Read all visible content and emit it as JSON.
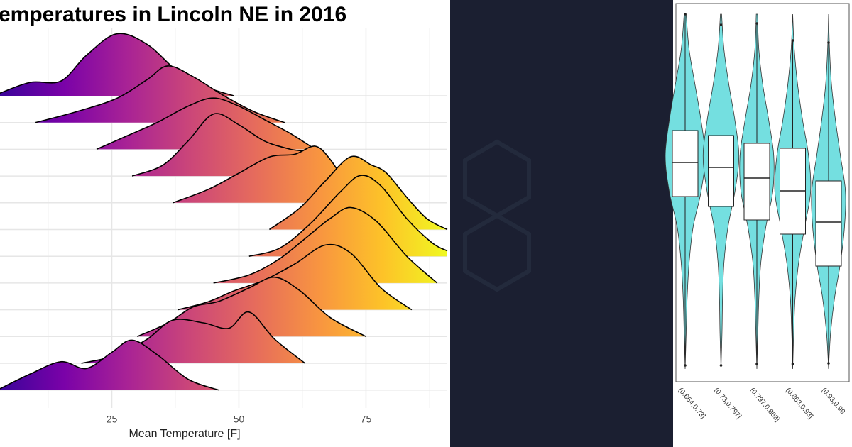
{
  "chart_data": [
    {
      "type": "ridgeline",
      "title": "emperatures in Lincoln NE in 2016",
      "x_label": "Mean Temperature [F]",
      "xlim": [
        3,
        91
      ],
      "xticks": [
        25,
        50,
        75
      ],
      "minor_xticks": [
        12.5,
        37.5,
        62.5,
        87.5
      ],
      "grid": true,
      "fill_colors": [
        "#3b049a",
        "#7a02a8",
        "#a92395",
        "#cc4778",
        "#e66c5c",
        "#f89540",
        "#fdc328",
        "#f0f921"
      ],
      "line_color": "#000000",
      "series": [
        {
          "x": [
            3,
            9,
            15,
            20,
            26,
            32,
            38,
            44,
            49
          ],
          "values": [
            0.1,
            0.5,
            0.55,
            1.5,
            2.3,
            1.9,
            0.9,
            0.3,
            0
          ]
        },
        {
          "x": [
            10,
            18,
            26,
            32,
            36,
            41,
            47,
            53,
            59
          ],
          "values": [
            0,
            0.4,
            0.9,
            1.6,
            2.1,
            1.7,
            1.0,
            0.4,
            0
          ]
        },
        {
          "x": [
            22,
            28,
            34,
            40,
            45,
            50,
            55,
            60,
            65
          ],
          "values": [
            0,
            0.5,
            1.0,
            1.6,
            1.9,
            1.6,
            1.1,
            0.6,
            0
          ]
        },
        {
          "x": [
            29,
            35,
            40,
            45,
            50,
            55,
            60,
            65,
            69
          ],
          "values": [
            0,
            0.4,
            1.3,
            2.3,
            1.9,
            1.3,
            1.0,
            0.8,
            0
          ]
        },
        {
          "x": [
            37,
            44,
            50,
            56,
            61,
            65,
            68,
            71,
            73
          ],
          "values": [
            0,
            0.5,
            1.1,
            1.7,
            1.8,
            2.1,
            1.6,
            0.7,
            0
          ]
        },
        {
          "x": [
            56,
            62,
            67,
            72,
            76,
            79,
            83,
            87,
            91
          ],
          "values": [
            0,
            0.8,
            1.8,
            2.7,
            2.4,
            2.1,
            1.2,
            0.4,
            0
          ]
        },
        {
          "x": [
            52,
            58,
            64,
            70,
            74,
            78,
            83,
            88,
            91
          ],
          "values": [
            0,
            0.3,
            1.2,
            2.4,
            3.0,
            2.6,
            1.4,
            0.5,
            0.2
          ]
        },
        {
          "x": [
            45,
            52,
            58,
            64,
            68,
            72,
            77,
            83,
            89
          ],
          "values": [
            0,
            0.3,
            0.9,
            1.8,
            2.4,
            2.8,
            2.3,
            1.0,
            0
          ]
        },
        {
          "x": [
            38,
            44,
            49,
            55,
            61,
            67,
            72,
            78,
            84
          ],
          "values": [
            0,
            0.3,
            0.7,
            1.1,
            1.7,
            2.4,
            2.1,
            0.8,
            0
          ]
        },
        {
          "x": [
            30,
            36,
            41,
            46,
            52,
            57,
            62,
            68,
            75
          ],
          "values": [
            0,
            0.5,
            1.1,
            1.3,
            1.8,
            2.2,
            1.7,
            0.7,
            0
          ]
        },
        {
          "x": [
            19,
            26,
            32,
            37,
            43,
            48,
            52,
            57,
            63
          ],
          "values": [
            0,
            0.3,
            0.9,
            1.6,
            1.5,
            1.3,
            1.9,
            0.9,
            0
          ]
        },
        {
          "x": [
            3,
            9,
            15,
            20,
            25,
            29,
            34,
            40,
            46
          ],
          "values": [
            0.05,
            0.6,
            1.05,
            0.8,
            1.4,
            1.85,
            1.3,
            0.4,
            0
          ]
        }
      ]
    },
    {
      "type": "violin",
      "categories": [
        "(0.664,0.73]",
        "(0.73,0.797]",
        "(0.797,0.863]",
        "(0.863,0.93]",
        "(0.93,0.99"
      ],
      "ylim": [
        0,
        100
      ],
      "color": "#74dfe0",
      "density_y": [
        0,
        10,
        20,
        30,
        40,
        50,
        60,
        70,
        80,
        90,
        100
      ],
      "series": [
        {
          "whisker_low": 1,
          "q1": 48.6,
          "median": 58.2,
          "q3": 67.2,
          "whisker_high": 100,
          "density": [
            0,
            0.05,
            0.1,
            0.2,
            0.4,
            0.8,
            1.0,
            0.8,
            0.5,
            0.2,
            0.05
          ]
        },
        {
          "whisker_low": 1,
          "q1": 45.8,
          "median": 56.8,
          "q3": 65.8,
          "whisker_high": 97,
          "density": [
            0,
            0.05,
            0.08,
            0.15,
            0.35,
            0.7,
            0.9,
            0.7,
            0.4,
            0.15,
            0.03
          ]
        },
        {
          "whisker_low": 1.4,
          "q1": 42,
          "median": 53.8,
          "q3": 63.6,
          "whisker_high": 97.4,
          "density": [
            0,
            0.05,
            0.1,
            0.2,
            0.45,
            0.8,
            0.85,
            0.6,
            0.3,
            0.1,
            0.03
          ]
        },
        {
          "whisker_low": 1.4,
          "q1": 38,
          "median": 50.2,
          "q3": 62.2,
          "whisker_high": 92.6,
          "density": [
            0,
            0.05,
            0.12,
            0.3,
            0.6,
            0.9,
            0.8,
            0.5,
            0.25,
            0.08,
            0
          ]
        },
        {
          "whisker_low": 1.6,
          "q1": 29,
          "median": 41.4,
          "q3": 53,
          "whisker_high": 92,
          "density": [
            0,
            0.1,
            0.3,
            0.6,
            0.8,
            0.85,
            0.6,
            0.35,
            0.15,
            0.05,
            0
          ]
        }
      ]
    }
  ]
}
